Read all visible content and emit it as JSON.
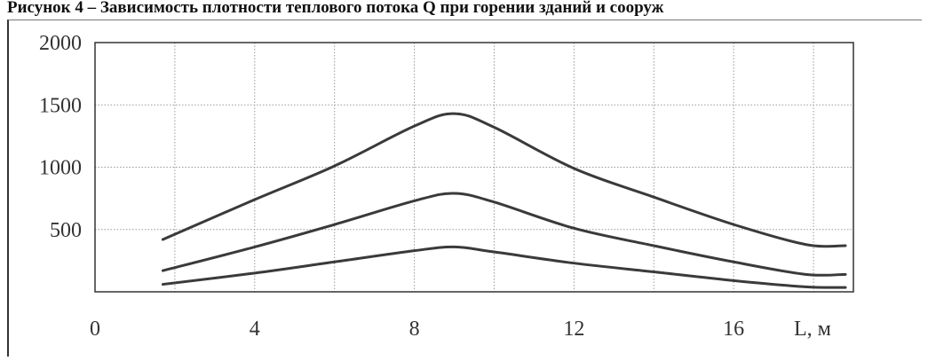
{
  "title": "Рисунок 4 – Зависимость плотности теплового потока Q при горении зданий и сооруж",
  "chart_data": {
    "type": "line",
    "title": "Рисунок 4 – Зависимость плотности теплового потока Q при горении зданий и сооруж",
    "xlabel": "L, м",
    "ylabel": "",
    "xlim": [
      0,
      19
    ],
    "ylim": [
      0,
      2000
    ],
    "x_ticks": [
      "0",
      "4",
      "8",
      "12",
      "16"
    ],
    "y_ticks": [
      "2000",
      "1500",
      "1000",
      "500"
    ],
    "grid": true,
    "series": [
      {
        "x": [
          1.7,
          4,
          6,
          8,
          9,
          10,
          12,
          14,
          16,
          17.8,
          18.8
        ],
        "values": [
          420,
          740,
          1010,
          1330,
          1430,
          1320,
          990,
          760,
          540,
          380,
          370
        ]
      },
      {
        "x": [
          1.7,
          4,
          6,
          8,
          9,
          10,
          12,
          14,
          16,
          17.8,
          18.8
        ],
        "values": [
          170,
          360,
          540,
          730,
          790,
          720,
          510,
          370,
          240,
          140,
          140
        ]
      },
      {
        "x": [
          1.7,
          4,
          6,
          8,
          9,
          10,
          12,
          14,
          16,
          17.8,
          18.8
        ],
        "values": [
          60,
          150,
          240,
          330,
          360,
          320,
          230,
          160,
          90,
          40,
          35
        ]
      }
    ],
    "colors": {
      "line": "#3a3a3a",
      "grid": "#9a9a9a",
      "axis": "#333333"
    }
  }
}
